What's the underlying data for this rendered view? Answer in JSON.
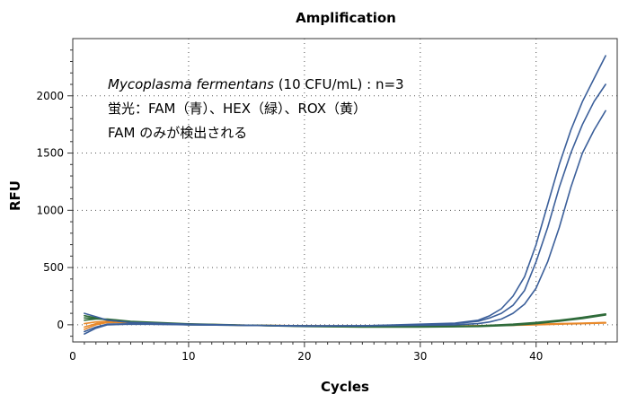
{
  "chart_data": {
    "type": "line",
    "title": "Amplification",
    "xlabel": "Cycles",
    "ylabel": "RFU",
    "xlim": [
      0,
      47
    ],
    "ylim": [
      -150,
      2500
    ],
    "xticks": [
      0,
      10,
      20,
      30,
      40
    ],
    "yticks": [
      0,
      500,
      1000,
      1500,
      2000
    ],
    "grid": true,
    "annotations": {
      "line1_italic": "Mycoplasma fermentans",
      "line1_rest": " (10 CFU/mL) : n=3",
      "line2": "蛍光：FAM（青）、HEX（緑）、ROX（黄）",
      "line3": "FAM のみが検出される"
    },
    "colors": {
      "FAM": "#3b5f9a",
      "HEX": "#2f6b3a",
      "ROX": "#e8892b"
    },
    "series": [
      {
        "group": "FAM",
        "x": [
          1,
          2,
          3,
          5,
          10,
          15,
          20,
          25,
          30,
          33,
          35,
          36,
          37,
          38,
          39,
          40,
          41,
          42,
          43,
          44,
          45,
          46
        ],
        "y": [
          -80,
          -30,
          0,
          5,
          2,
          -5,
          -10,
          -10,
          5,
          15,
          40,
          80,
          140,
          250,
          420,
          700,
          1050,
          1400,
          1700,
          1950,
          2150,
          2350
        ]
      },
      {
        "group": "FAM",
        "x": [
          1,
          2,
          3,
          5,
          10,
          15,
          20,
          25,
          30,
          33,
          35,
          36,
          37,
          38,
          39,
          40,
          41,
          42,
          43,
          44,
          45,
          46
        ],
        "y": [
          -60,
          -20,
          5,
          8,
          0,
          -5,
          -12,
          -8,
          0,
          10,
          30,
          60,
          100,
          170,
          300,
          550,
          850,
          1200,
          1500,
          1750,
          1950,
          2100
        ]
      },
      {
        "group": "FAM",
        "x": [
          1,
          2,
          3,
          5,
          10,
          15,
          20,
          25,
          30,
          33,
          35,
          36,
          37,
          38,
          39,
          40,
          41,
          42,
          43,
          44,
          45,
          46
        ],
        "y": [
          100,
          70,
          40,
          20,
          5,
          -5,
          -10,
          -10,
          -5,
          0,
          10,
          25,
          50,
          100,
          180,
          320,
          550,
          850,
          1200,
          1500,
          1700,
          1870
        ]
      },
      {
        "group": "HEX",
        "x": [
          1,
          2,
          3,
          5,
          10,
          15,
          20,
          25,
          30,
          35,
          38,
          40,
          42,
          44,
          46
        ],
        "y": [
          80,
          60,
          40,
          20,
          0,
          -5,
          -15,
          -20,
          -20,
          -15,
          -5,
          10,
          30,
          55,
          85
        ]
      },
      {
        "group": "HEX",
        "x": [
          1,
          2,
          3,
          5,
          10,
          15,
          20,
          25,
          30,
          35,
          38,
          40,
          42,
          44,
          46
        ],
        "y": [
          60,
          55,
          45,
          25,
          5,
          -5,
          -12,
          -18,
          -18,
          -12,
          0,
          15,
          35,
          60,
          90
        ]
      },
      {
        "group": "HEX",
        "x": [
          1,
          2,
          3,
          5,
          10,
          15,
          20,
          25,
          30,
          35,
          38,
          40,
          42,
          44,
          46
        ],
        "y": [
          40,
          50,
          50,
          30,
          8,
          -3,
          -10,
          -15,
          -15,
          -10,
          5,
          20,
          40,
          65,
          95
        ]
      },
      {
        "group": "ROX",
        "x": [
          1,
          2,
          3,
          5,
          10,
          15,
          20,
          25,
          30,
          35,
          38,
          40,
          42,
          44,
          46
        ],
        "y": [
          -20,
          10,
          25,
          20,
          5,
          -5,
          -10,
          -15,
          -15,
          -10,
          -5,
          0,
          5,
          10,
          15
        ]
      },
      {
        "group": "ROX",
        "x": [
          1,
          2,
          3,
          5,
          10,
          15,
          20,
          25,
          30,
          35,
          38,
          40,
          42,
          44,
          46
        ],
        "y": [
          -40,
          0,
          20,
          18,
          3,
          -5,
          -12,
          -15,
          -15,
          -10,
          -3,
          2,
          8,
          12,
          18
        ]
      },
      {
        "group": "ROX",
        "x": [
          1,
          2,
          3,
          5,
          10,
          15,
          20,
          25,
          30,
          35,
          38,
          40,
          42,
          44,
          46
        ],
        "y": [
          10,
          25,
          30,
          22,
          6,
          -3,
          -8,
          -12,
          -12,
          -8,
          0,
          5,
          10,
          15,
          20
        ]
      }
    ]
  }
}
